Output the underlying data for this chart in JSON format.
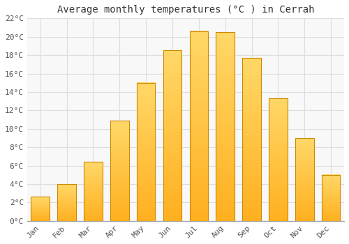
{
  "title": "Average monthly temperatures (°C ) in Cerrah",
  "months": [
    "Jan",
    "Feb",
    "Mar",
    "Apr",
    "May",
    "Jun",
    "Jul",
    "Aug",
    "Sep",
    "Oct",
    "Nov",
    "Dec"
  ],
  "temperatures": [
    2.6,
    4.0,
    6.4,
    10.9,
    15.0,
    18.5,
    20.6,
    20.5,
    17.7,
    13.3,
    9.0,
    5.0
  ],
  "bar_color_main": "#FFB020",
  "bar_color_light": "#FFD060",
  "bar_edge_color": "#CC8800",
  "ylim": [
    0,
    22
  ],
  "yticks": [
    0,
    2,
    4,
    6,
    8,
    10,
    12,
    14,
    16,
    18,
    20,
    22
  ],
  "ytick_labels": [
    "0°C",
    "2°C",
    "4°C",
    "6°C",
    "8°C",
    "10°C",
    "12°C",
    "14°C",
    "16°C",
    "18°C",
    "20°C",
    "22°C"
  ],
  "background_color": "#ffffff",
  "plot_bg_color": "#f8f8f8",
  "grid_color": "#dddddd",
  "title_fontsize": 10,
  "tick_fontsize": 8,
  "font_family": "monospace",
  "bar_width": 0.7
}
